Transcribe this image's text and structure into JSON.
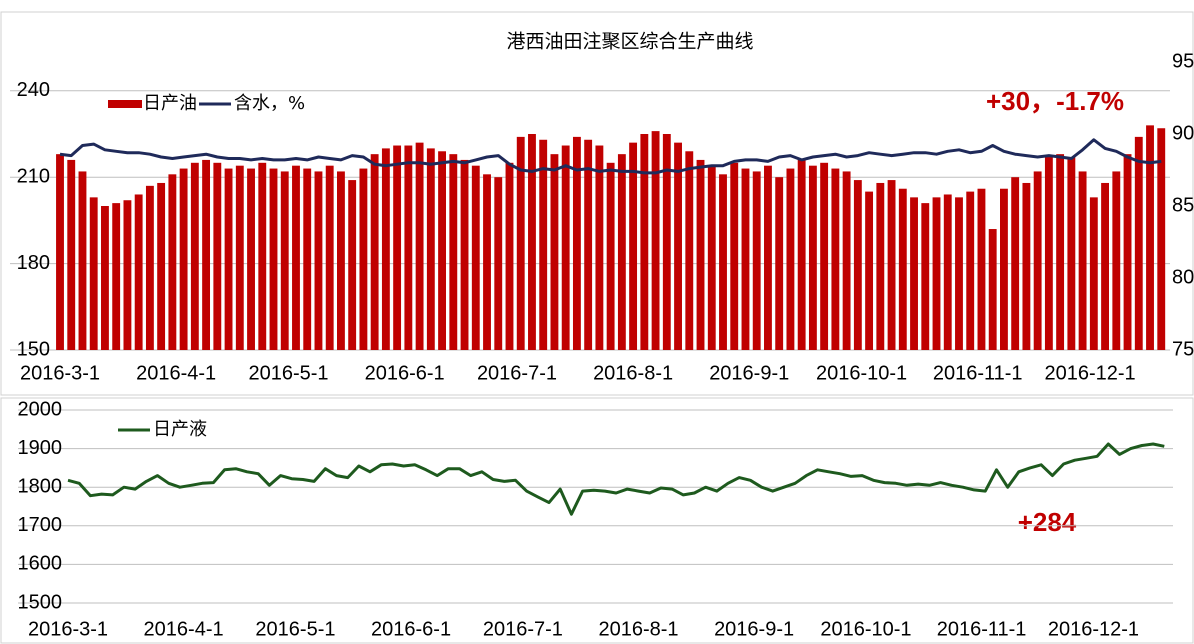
{
  "chart_data": [
    {
      "type": "bar",
      "title": "港西油田注聚区综合生产曲线",
      "annotation": "+30，-1.7%",
      "x": [
        "2016-3-1",
        "2016-3-4",
        "2016-3-7",
        "2016-3-10",
        "2016-3-13",
        "2016-3-16",
        "2016-3-19",
        "2016-3-22",
        "2016-3-25",
        "2016-3-28",
        "2016-3-31",
        "2016-4-3",
        "2016-4-6",
        "2016-4-9",
        "2016-4-12",
        "2016-4-15",
        "2016-4-18",
        "2016-4-21",
        "2016-4-24",
        "2016-4-27",
        "2016-4-30",
        "2016-5-3",
        "2016-5-6",
        "2016-5-9",
        "2016-5-12",
        "2016-5-15",
        "2016-5-18",
        "2016-5-21",
        "2016-5-24",
        "2016-5-27",
        "2016-5-30",
        "2016-6-2",
        "2016-6-5",
        "2016-6-8",
        "2016-6-11",
        "2016-6-14",
        "2016-6-17",
        "2016-6-20",
        "2016-6-23",
        "2016-6-26",
        "2016-6-29",
        "2016-7-2",
        "2016-7-5",
        "2016-7-8",
        "2016-7-11",
        "2016-7-14",
        "2016-7-17",
        "2016-7-20",
        "2016-7-23",
        "2016-7-26",
        "2016-7-29",
        "2016-8-1",
        "2016-8-4",
        "2016-8-7",
        "2016-8-10",
        "2016-8-13",
        "2016-8-16",
        "2016-8-19",
        "2016-8-22",
        "2016-8-25",
        "2016-8-28",
        "2016-8-31",
        "2016-9-3",
        "2016-9-6",
        "2016-9-9",
        "2016-9-12",
        "2016-9-15",
        "2016-9-18",
        "2016-9-21",
        "2016-9-24",
        "2016-9-27",
        "2016-9-30",
        "2016-10-3",
        "2016-10-6",
        "2016-10-9",
        "2016-10-12",
        "2016-10-15",
        "2016-10-18",
        "2016-10-21",
        "2016-10-24",
        "2016-10-27",
        "2016-10-30",
        "2016-11-2",
        "2016-11-5",
        "2016-11-8",
        "2016-11-11",
        "2016-11-14",
        "2016-11-17",
        "2016-11-20",
        "2016-11-23",
        "2016-11-26",
        "2016-11-29",
        "2016-12-2",
        "2016-12-5",
        "2016-12-8",
        "2016-12-11",
        "2016-12-14",
        "2016-12-17",
        "2016-12-20"
      ],
      "xlim": [
        "2016-3-1",
        "2016-12-21"
      ],
      "xticks": [
        "2016-3-1",
        "2016-4-1",
        "2016-5-1",
        "2016-6-1",
        "2016-7-1",
        "2016-8-1",
        "2016-9-1",
        "2016-10-1",
        "2016-11-1",
        "2016-12-1"
      ],
      "ylim": [
        150,
        250
      ],
      "yticks": [
        150,
        180,
        210,
        240
      ],
      "y2lim": [
        75,
        95
      ],
      "y2ticks": [
        75,
        80,
        85,
        90,
        95
      ],
      "grid": true,
      "series": [
        {
          "name": "日产油",
          "type": "bar",
          "color": "#c00000",
          "values": [
            218,
            216,
            212,
            203,
            200,
            201,
            202,
            204,
            207,
            208,
            211,
            213,
            215,
            216,
            215,
            213,
            214,
            213,
            215,
            213,
            212,
            214,
            213,
            212,
            214,
            212,
            209,
            213,
            218,
            220,
            221,
            221,
            222,
            220,
            219,
            218,
            216,
            214,
            211,
            210,
            215,
            224,
            225,
            223,
            218,
            221,
            224,
            223,
            221,
            215,
            218,
            222,
            225,
            226,
            225,
            222,
            219,
            216,
            214,
            211,
            215,
            213,
            212,
            214,
            210,
            213,
            216,
            214,
            215,
            213,
            212,
            209,
            205,
            208,
            209,
            206,
            203,
            201,
            203,
            204,
            203,
            205,
            206,
            192,
            206,
            210,
            208,
            212,
            217,
            218,
            217,
            212,
            203,
            208,
            212,
            218,
            224,
            228,
            227
          ]
        },
        {
          "name": "含水，%",
          "type": "line",
          "axis": "y2",
          "color": "#1f2a5a",
          "values": [
            88.6,
            88.5,
            89.2,
            89.3,
            88.9,
            88.8,
            88.7,
            88.7,
            88.6,
            88.4,
            88.3,
            88.4,
            88.5,
            88.6,
            88.4,
            88.3,
            88.3,
            88.2,
            88.3,
            88.2,
            88.2,
            88.3,
            88.2,
            88.4,
            88.3,
            88.2,
            88.5,
            88.4,
            87.9,
            87.8,
            87.9,
            88.0,
            88.0,
            87.9,
            88.0,
            88.1,
            88.0,
            88.2,
            88.4,
            88.5,
            87.9,
            87.5,
            87.4,
            87.6,
            87.5,
            87.8,
            87.5,
            87.6,
            87.4,
            87.5,
            87.4,
            87.4,
            87.3,
            87.3,
            87.5,
            87.4,
            87.6,
            87.7,
            87.8,
            87.8,
            88.1,
            88.2,
            88.2,
            88.1,
            88.4,
            88.5,
            88.2,
            88.4,
            88.5,
            88.6,
            88.4,
            88.5,
            88.7,
            88.6,
            88.5,
            88.6,
            88.7,
            88.7,
            88.6,
            88.8,
            88.9,
            88.7,
            88.8,
            89.2,
            88.8,
            88.6,
            88.5,
            88.4,
            88.5,
            88.4,
            88.3,
            88.9,
            89.6,
            89.0,
            88.8,
            88.4,
            88.1,
            88.0,
            88.1
          ]
        }
      ]
    },
    {
      "type": "line",
      "annotation": "+284",
      "x": [
        "2016-3-1",
        "2016-3-4",
        "2016-3-7",
        "2016-3-10",
        "2016-3-13",
        "2016-3-16",
        "2016-3-19",
        "2016-3-22",
        "2016-3-25",
        "2016-3-28",
        "2016-3-31",
        "2016-4-3",
        "2016-4-6",
        "2016-4-9",
        "2016-4-12",
        "2016-4-15",
        "2016-4-18",
        "2016-4-21",
        "2016-4-24",
        "2016-4-27",
        "2016-4-30",
        "2016-5-3",
        "2016-5-6",
        "2016-5-9",
        "2016-5-12",
        "2016-5-15",
        "2016-5-18",
        "2016-5-21",
        "2016-5-24",
        "2016-5-27",
        "2016-5-30",
        "2016-6-2",
        "2016-6-5",
        "2016-6-8",
        "2016-6-11",
        "2016-6-14",
        "2016-6-17",
        "2016-6-20",
        "2016-6-23",
        "2016-6-26",
        "2016-6-29",
        "2016-7-2",
        "2016-7-5",
        "2016-7-8",
        "2016-7-11",
        "2016-7-14",
        "2016-7-17",
        "2016-7-20",
        "2016-7-23",
        "2016-7-26",
        "2016-7-29",
        "2016-8-1",
        "2016-8-4",
        "2016-8-7",
        "2016-8-10",
        "2016-8-13",
        "2016-8-16",
        "2016-8-19",
        "2016-8-22",
        "2016-8-25",
        "2016-8-28",
        "2016-8-31",
        "2016-9-3",
        "2016-9-6",
        "2016-9-9",
        "2016-9-12",
        "2016-9-15",
        "2016-9-18",
        "2016-9-21",
        "2016-9-24",
        "2016-9-27",
        "2016-9-30",
        "2016-10-3",
        "2016-10-6",
        "2016-10-9",
        "2016-10-12",
        "2016-10-15",
        "2016-10-18",
        "2016-10-21",
        "2016-10-24",
        "2016-10-27",
        "2016-10-30",
        "2016-11-2",
        "2016-11-5",
        "2016-11-8",
        "2016-11-11",
        "2016-11-14",
        "2016-11-17",
        "2016-11-20",
        "2016-11-23",
        "2016-11-26",
        "2016-11-29",
        "2016-12-2",
        "2016-12-5",
        "2016-12-8",
        "2016-12-11",
        "2016-12-14",
        "2016-12-17",
        "2016-12-20"
      ],
      "xlim": [
        "2016-3-1",
        "2016-12-21"
      ],
      "xticks": [
        "2016-3-1",
        "2016-4-1",
        "2016-5-1",
        "2016-6-1",
        "2016-7-1",
        "2016-8-1",
        "2016-9-1",
        "2016-10-1",
        "2016-11-1",
        "2016-12-1"
      ],
      "ylim": [
        1500,
        2000
      ],
      "yticks": [
        1500,
        1600,
        1700,
        1800,
        1900,
        2000
      ],
      "grid": true,
      "series": [
        {
          "name": "日产液",
          "type": "line",
          "color": "#1e5a1e",
          "values": [
            1818,
            1810,
            1778,
            1782,
            1780,
            1800,
            1795,
            1815,
            1830,
            1810,
            1800,
            1805,
            1810,
            1812,
            1845,
            1848,
            1840,
            1835,
            1805,
            1830,
            1822,
            1820,
            1815,
            1848,
            1830,
            1825,
            1855,
            1840,
            1858,
            1860,
            1855,
            1858,
            1845,
            1830,
            1848,
            1848,
            1830,
            1840,
            1820,
            1815,
            1818,
            1790,
            1775,
            1760,
            1795,
            1730,
            1790,
            1792,
            1790,
            1785,
            1795,
            1790,
            1785,
            1798,
            1795,
            1780,
            1785,
            1800,
            1790,
            1810,
            1825,
            1818,
            1800,
            1790,
            1800,
            1810,
            1830,
            1845,
            1840,
            1835,
            1828,
            1830,
            1818,
            1812,
            1810,
            1805,
            1808,
            1805,
            1812,
            1805,
            1800,
            1793,
            1790,
            1845,
            1800,
            1840,
            1850,
            1858,
            1830,
            1860,
            1870,
            1875,
            1880,
            1912,
            1885,
            1900,
            1908,
            1912,
            1906
          ]
        }
      ]
    }
  ]
}
